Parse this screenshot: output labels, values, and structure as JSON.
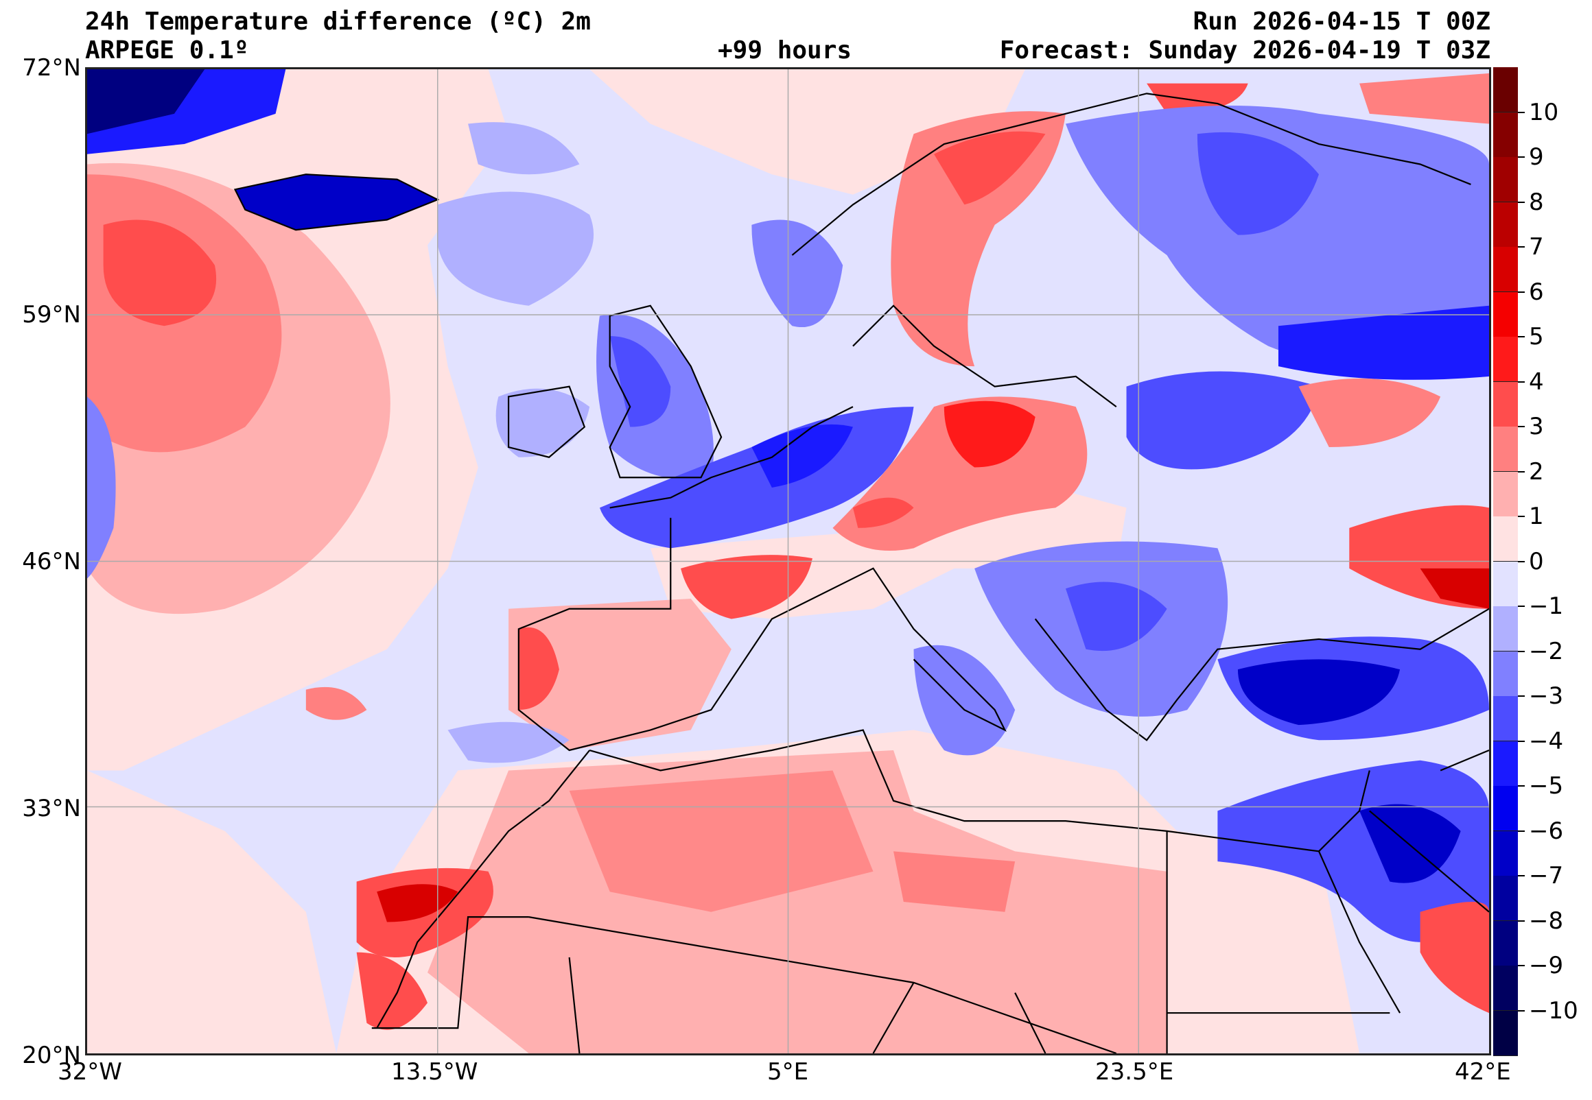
{
  "header": {
    "title": "24h Temperature difference (ºC) 2m",
    "model": "ARPEGE 0.1º",
    "lead": "+99 hours",
    "run": "Run 2026-04-15 T 00Z",
    "forecast": "Forecast: Sunday 2026-04-19 T 03Z"
  },
  "axes": {
    "lat_labels": [
      "72°N",
      "59°N",
      "46°N",
      "33°N",
      "20°N"
    ],
    "lon_labels": [
      "32°W",
      "13.5°W",
      "5°E",
      "23.5°E",
      "42°E"
    ]
  },
  "colorbar": {
    "ticks": [
      "10",
      "9",
      "8",
      "7",
      "6",
      "5",
      "4",
      "3",
      "2",
      "1",
      "0",
      "−1",
      "−2",
      "−3",
      "−4",
      "−5",
      "−6",
      "−7",
      "−8",
      "−9",
      "−10"
    ],
    "colors": [
      "#6a0000",
      "#850000",
      "#a00000",
      "#bb0000",
      "#d80000",
      "#f50000",
      "#ff1a1a",
      "#ff4d4d",
      "#ff8080",
      "#ffb0b0",
      "#ffe2e2",
      "#e2e2ff",
      "#b0b0ff",
      "#8080ff",
      "#4d4dff",
      "#1a1aff",
      "#0000f0",
      "#0000c8",
      "#0000a0",
      "#000080",
      "#000060",
      "#000045"
    ]
  }
}
